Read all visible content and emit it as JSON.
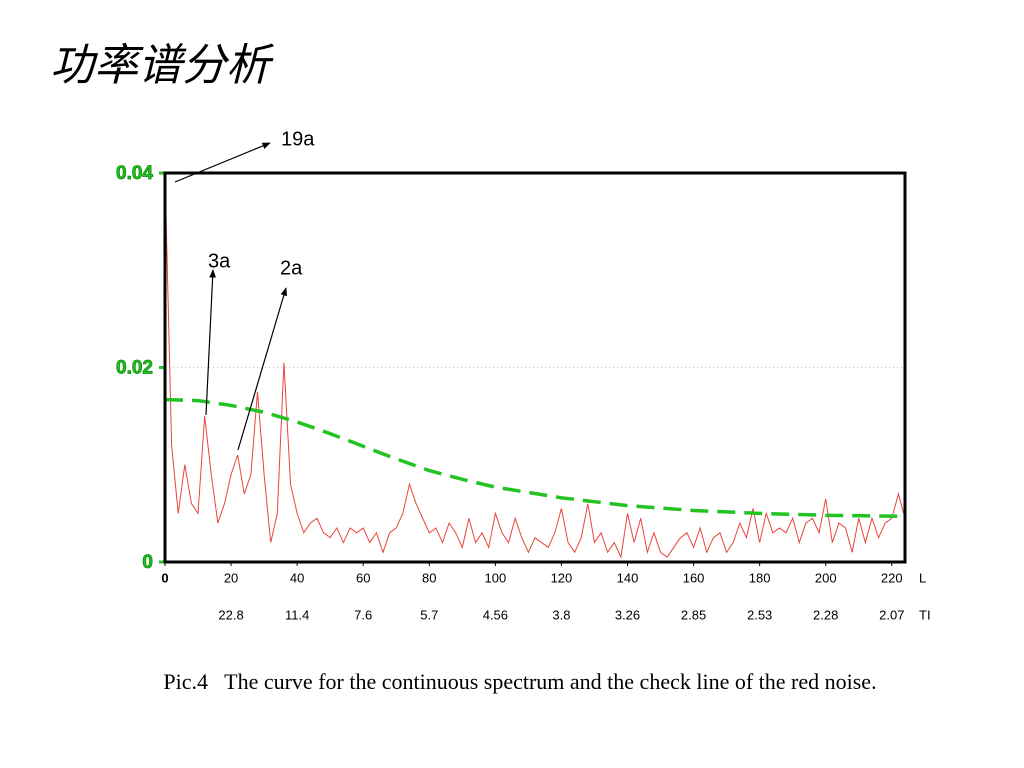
{
  "title": "功率谱分析",
  "caption": "Pic.4   The curve for the continuous spectrum and the check line of the red noise.",
  "chart_data": {
    "type": "line",
    "x_axis_label": "L",
    "period_axis_label": "TI",
    "xlim": [
      0,
      224
    ],
    "xticks": [
      0,
      20,
      40,
      60,
      80,
      100,
      120,
      140,
      160,
      180,
      200,
      220
    ],
    "period_labels": [
      null,
      "22.8",
      "11.4",
      "7.6",
      "5.7",
      "4.56",
      "3.8",
      "3.26",
      "2.85",
      "2.53",
      "2.28",
      "2.07"
    ],
    "ylim": [
      0,
      0.04
    ],
    "yticks": [
      0,
      0.02,
      0.04
    ],
    "grid": true,
    "annotations": [
      "19a",
      "3a",
      "2a"
    ],
    "series": [
      {
        "color": "#e8453c",
        "dashed": false,
        "x": [
          0,
          2,
          4,
          6,
          8,
          10,
          12,
          14,
          16,
          18,
          20,
          22,
          24,
          26,
          28,
          30,
          32,
          34,
          36,
          38,
          40,
          42,
          44,
          46,
          48,
          50,
          52,
          54,
          56,
          58,
          60,
          62,
          64,
          66,
          68,
          70,
          72,
          74,
          76,
          78,
          80,
          82,
          84,
          86,
          88,
          90,
          92,
          94,
          96,
          98,
          100,
          102,
          104,
          106,
          108,
          110,
          112,
          114,
          116,
          118,
          120,
          122,
          124,
          126,
          128,
          130,
          132,
          134,
          136,
          138,
          140,
          142,
          144,
          146,
          148,
          150,
          152,
          154,
          156,
          158,
          160,
          162,
          164,
          166,
          168,
          170,
          172,
          174,
          176,
          178,
          180,
          182,
          184,
          186,
          188,
          190,
          192,
          194,
          196,
          198,
          200,
          202,
          204,
          206,
          208,
          210,
          212,
          214,
          216,
          218,
          220,
          222,
          224
        ],
        "values": [
          0.04,
          0.012,
          0.005,
          0.01,
          0.006,
          0.005,
          0.015,
          0.009,
          0.004,
          0.006,
          0.009,
          0.011,
          0.007,
          0.009,
          0.0175,
          0.009,
          0.002,
          0.005,
          0.0205,
          0.008,
          0.005,
          0.003,
          0.004,
          0.0045,
          0.003,
          0.0025,
          0.0035,
          0.002,
          0.0035,
          0.003,
          0.0035,
          0.002,
          0.003,
          0.001,
          0.003,
          0.0035,
          0.005,
          0.008,
          0.006,
          0.0045,
          0.003,
          0.0035,
          0.002,
          0.004,
          0.003,
          0.0015,
          0.0045,
          0.002,
          0.003,
          0.0015,
          0.005,
          0.003,
          0.002,
          0.0045,
          0.0025,
          0.001,
          0.0025,
          0.002,
          0.0015,
          0.003,
          0.0055,
          0.002,
          0.001,
          0.0025,
          0.006,
          0.002,
          0.003,
          0.001,
          0.002,
          0.0005,
          0.005,
          0.002,
          0.0045,
          0.001,
          0.003,
          0.001,
          0.0005,
          0.0015,
          0.0025,
          0.003,
          0.0015,
          0.0035,
          0.001,
          0.0025,
          0.003,
          0.001,
          0.002,
          0.004,
          0.0025,
          0.0055,
          0.002,
          0.005,
          0.003,
          0.0035,
          0.003,
          0.0045,
          0.002,
          0.004,
          0.0045,
          0.003,
          0.0065,
          0.002,
          0.004,
          0.0035,
          0.001,
          0.0045,
          0.002,
          0.0045,
          0.0025,
          0.004,
          0.0045,
          0.007,
          0.0045
        ]
      },
      {
        "color": "#22c322",
        "dashed": true,
        "x": [
          0,
          10,
          20,
          30,
          40,
          50,
          60,
          70,
          80,
          90,
          100,
          120,
          140,
          160,
          180,
          200,
          224
        ],
        "values": [
          0.0167,
          0.0166,
          0.0161,
          0.0154,
          0.0144,
          0.0132,
          0.0119,
          0.0106,
          0.0094,
          0.0085,
          0.0077,
          0.0066,
          0.0058,
          0.0053,
          0.005,
          0.0048,
          0.0047
        ]
      }
    ]
  }
}
